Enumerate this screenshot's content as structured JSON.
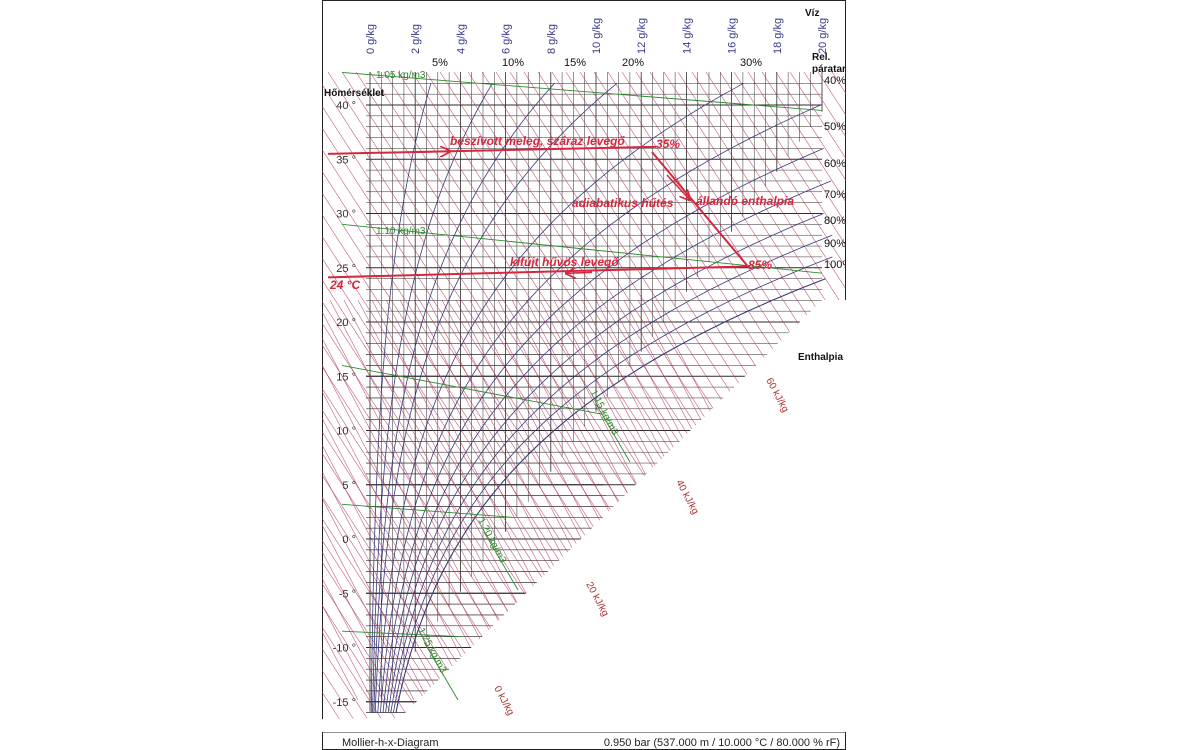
{
  "chart_data": {
    "type": "mollier-h-x",
    "labels": {
      "temperature_axis": "Hőmérséklet",
      "water_axis": "Víz",
      "relative_humidity_axis": "Rel.\npáratartalom",
      "enthalpy_axis": "Enthalpia",
      "footer_left": "Mollier-h-x-Diagram",
      "footer_right": "0.950 bar (537.000 m / 10.000 °C / 80.000 % rF)"
    },
    "temperature_ticks": [
      "40 °",
      "35 °",
      "30 °",
      "25 °",
      "20 °",
      "15 °",
      "10 °",
      "5 °",
      "0 °",
      "-5 °",
      "-10 °",
      "-15 °"
    ],
    "temperature_values": [
      40,
      35,
      30,
      25,
      20,
      15,
      10,
      5,
      0,
      -5,
      -10,
      -15
    ],
    "ylim": [
      -16.5,
      42.5
    ],
    "water_ticks": [
      "0 g/kg",
      "2 g/kg",
      "4 g/kg",
      "6 g/kg",
      "8 g/kg",
      "10 g/kg",
      "12 g/kg",
      "14 g/kg",
      "16 g/kg",
      "18 g/kg",
      "20 g/kg"
    ],
    "water_values": [
      0,
      2,
      4,
      6,
      8,
      10,
      12,
      14,
      16,
      18,
      20
    ],
    "xlim": [
      0,
      20
    ],
    "rh_top_ticks": [
      "5%",
      "10%",
      "15%",
      "20%",
      "30%"
    ],
    "rh_top_values": [
      5,
      10,
      15,
      20,
      30
    ],
    "rh_right_ticks": [
      "40%",
      "50%",
      "60%",
      "70%",
      "80%",
      "90%",
      "100%"
    ],
    "rh_right_values": [
      40,
      50,
      60,
      70,
      80,
      90,
      100
    ],
    "density_labels": [
      "1.05 kg/m3",
      "1.10 kg/m3",
      "1.15 kg/m3",
      "1.20 kg/m3",
      "1.25 kg/m3"
    ],
    "enthalpy_labels": [
      "0 kJ/kg",
      "20 kJ/kg",
      "40 kJ/kg",
      "60 kJ/kg"
    ],
    "annotations": {
      "intake": "beszívott meleg, száraz levegő",
      "intake_rh": "35%",
      "process": "adiabatikus hűtés",
      "constant_enthalpy": "állandó enthalpia",
      "outlet": "kifújt hűvös levegő",
      "outlet_rh": "85%",
      "outlet_temp": "24 °C"
    },
    "colors": {
      "grid": "#2b2b2b",
      "axis_text": "#333333",
      "water_text": "#3a3a8c",
      "rh_curves": "#3a3a7a",
      "enthalpy": "#b0305a",
      "enthalpy_text": "#b03030",
      "density": "#2e8b2e",
      "annotation": "#d7263d"
    }
  }
}
